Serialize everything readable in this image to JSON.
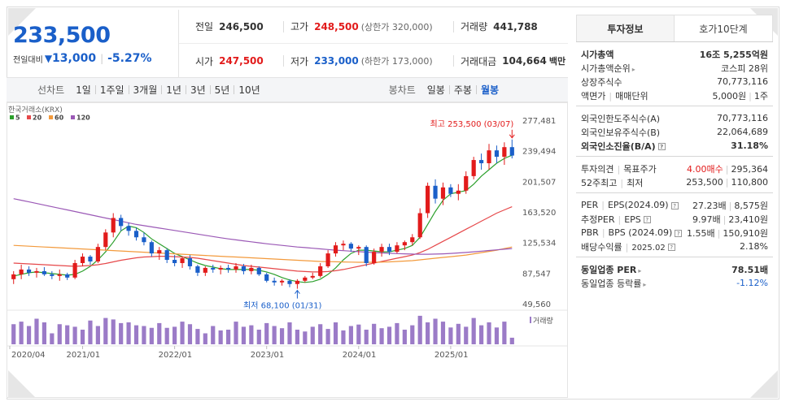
{
  "price": {
    "current": "233,500",
    "change_label": "전일대비",
    "change_arrow": "▼",
    "change_amount": "13,000",
    "change_pct": "-5.27%"
  },
  "stats": {
    "prev_close_label": "전일",
    "prev_close": "246,500",
    "high_label": "고가",
    "high": "248,500",
    "upper_limit": "(상한가 320,000)",
    "volume_label": "거래량",
    "volume": "441,788",
    "open_label": "시가",
    "open": "247,500",
    "low_label": "저가",
    "low": "233,000",
    "lower_limit": "(하한가 173,000)",
    "turnover_label": "거래대금",
    "turnover": "104,664",
    "turnover_unit": "백만"
  },
  "tabs": {
    "line_label": "선차트",
    "line_items": [
      "1일",
      "1주일",
      "3개월",
      "1년",
      "3년",
      "5년",
      "10년"
    ],
    "candle_label": "봉차트",
    "candle_items": [
      "일봉",
      "주봉",
      "월봉"
    ],
    "active_candle": "월봉"
  },
  "chart_data": {
    "type": "candlestick",
    "source_label": "한국거래소(KRX)",
    "legend": [
      {
        "name": "5",
        "color": "#2ca02c"
      },
      {
        "name": "20",
        "color": "#e6484a"
      },
      {
        "name": "60",
        "color": "#f39a3c"
      },
      {
        "name": "120",
        "color": "#9b59b6"
      }
    ],
    "y_ticks": [
      "277,481",
      "239,494",
      "201,507",
      "163,520",
      "125,534",
      "87,547",
      "49,560"
    ],
    "y_range": [
      49560,
      277481
    ],
    "x_ticks": [
      "2020/04",
      "2021/01",
      "2022/01",
      "2023/01",
      "2024/01",
      "2025/01"
    ],
    "max_annotation": "최고 253,500 (03/07)",
    "min_annotation": "최저 68,100 (01/31)",
    "volume_label": "거래량",
    "up_color": "#e21b1b",
    "down_color": "#1a5fc9",
    "candles": [
      {
        "o": 80000,
        "h": 90000,
        "l": 74000,
        "c": 86000
      },
      {
        "o": 86000,
        "h": 98000,
        "l": 80000,
        "c": 92000
      },
      {
        "o": 92000,
        "h": 96000,
        "l": 84000,
        "c": 88000
      },
      {
        "o": 88000,
        "h": 94000,
        "l": 82000,
        "c": 90000
      },
      {
        "o": 90000,
        "h": 95000,
        "l": 84000,
        "c": 86000
      },
      {
        "o": 86000,
        "h": 90000,
        "l": 80000,
        "c": 84000
      },
      {
        "o": 84000,
        "h": 92000,
        "l": 78000,
        "c": 86000
      },
      {
        "o": 86000,
        "h": 88000,
        "l": 79000,
        "c": 82000
      },
      {
        "o": 82000,
        "h": 104000,
        "l": 80000,
        "c": 100000
      },
      {
        "o": 100000,
        "h": 112000,
        "l": 96000,
        "c": 108000
      },
      {
        "o": 108000,
        "h": 110000,
        "l": 98000,
        "c": 102000
      },
      {
        "o": 102000,
        "h": 124000,
        "l": 100000,
        "c": 120000
      },
      {
        "o": 120000,
        "h": 142000,
        "l": 116000,
        "c": 138000
      },
      {
        "o": 138000,
        "h": 162000,
        "l": 132000,
        "c": 156000
      },
      {
        "o": 156000,
        "h": 160000,
        "l": 140000,
        "c": 146000
      },
      {
        "o": 146000,
        "h": 150000,
        "l": 134000,
        "c": 140000
      },
      {
        "o": 140000,
        "h": 144000,
        "l": 128000,
        "c": 132000
      },
      {
        "o": 132000,
        "h": 138000,
        "l": 122000,
        "c": 126000
      },
      {
        "o": 126000,
        "h": 128000,
        "l": 108000,
        "c": 112000
      },
      {
        "o": 112000,
        "h": 120000,
        "l": 104000,
        "c": 116000
      },
      {
        "o": 116000,
        "h": 118000,
        "l": 100000,
        "c": 104000
      },
      {
        "o": 104000,
        "h": 110000,
        "l": 96000,
        "c": 100000
      },
      {
        "o": 100000,
        "h": 108000,
        "l": 94000,
        "c": 106000
      },
      {
        "o": 106000,
        "h": 110000,
        "l": 92000,
        "c": 96000
      },
      {
        "o": 96000,
        "h": 98000,
        "l": 84000,
        "c": 88000
      },
      {
        "o": 88000,
        "h": 96000,
        "l": 84000,
        "c": 94000
      },
      {
        "o": 94000,
        "h": 98000,
        "l": 88000,
        "c": 92000
      },
      {
        "o": 92000,
        "h": 97000,
        "l": 86000,
        "c": 94000
      },
      {
        "o": 94000,
        "h": 98000,
        "l": 88000,
        "c": 92000
      },
      {
        "o": 92000,
        "h": 100000,
        "l": 88000,
        "c": 96000
      },
      {
        "o": 96000,
        "h": 99000,
        "l": 86000,
        "c": 90000
      },
      {
        "o": 90000,
        "h": 98000,
        "l": 86000,
        "c": 94000
      },
      {
        "o": 94000,
        "h": 96000,
        "l": 84000,
        "c": 86000
      },
      {
        "o": 86000,
        "h": 88000,
        "l": 76000,
        "c": 78000
      },
      {
        "o": 78000,
        "h": 82000,
        "l": 72000,
        "c": 76000
      },
      {
        "o": 76000,
        "h": 80000,
        "l": 72000,
        "c": 78000
      },
      {
        "o": 78000,
        "h": 80000,
        "l": 70000,
        "c": 74000
      },
      {
        "o": 74000,
        "h": 80000,
        "l": 68100,
        "c": 78000
      },
      {
        "o": 78000,
        "h": 84000,
        "l": 76000,
        "c": 82000
      },
      {
        "o": 82000,
        "h": 88000,
        "l": 80000,
        "c": 84000
      },
      {
        "o": 84000,
        "h": 100000,
        "l": 82000,
        "c": 96000
      },
      {
        "o": 96000,
        "h": 116000,
        "l": 94000,
        "c": 112000
      },
      {
        "o": 112000,
        "h": 126000,
        "l": 108000,
        "c": 122000
      },
      {
        "o": 122000,
        "h": 128000,
        "l": 116000,
        "c": 124000
      },
      {
        "o": 124000,
        "h": 126000,
        "l": 114000,
        "c": 118000
      },
      {
        "o": 118000,
        "h": 122000,
        "l": 110000,
        "c": 120000
      },
      {
        "o": 120000,
        "h": 122000,
        "l": 96000,
        "c": 100000
      },
      {
        "o": 100000,
        "h": 118000,
        "l": 98000,
        "c": 114000
      },
      {
        "o": 114000,
        "h": 124000,
        "l": 108000,
        "c": 120000
      },
      {
        "o": 120000,
        "h": 124000,
        "l": 110000,
        "c": 114000
      },
      {
        "o": 114000,
        "h": 126000,
        "l": 112000,
        "c": 122000
      },
      {
        "o": 122000,
        "h": 128000,
        "l": 116000,
        "c": 126000
      },
      {
        "o": 126000,
        "h": 136000,
        "l": 122000,
        "c": 132000
      },
      {
        "o": 132000,
        "h": 168000,
        "l": 130000,
        "c": 162000
      },
      {
        "o": 162000,
        "h": 200000,
        "l": 156000,
        "c": 196000
      },
      {
        "o": 196000,
        "h": 204000,
        "l": 174000,
        "c": 180000
      },
      {
        "o": 180000,
        "h": 200000,
        "l": 172000,
        "c": 194000
      },
      {
        "o": 194000,
        "h": 198000,
        "l": 182000,
        "c": 186000
      },
      {
        "o": 186000,
        "h": 198000,
        "l": 178000,
        "c": 190000
      },
      {
        "o": 190000,
        "h": 214000,
        "l": 186000,
        "c": 208000
      },
      {
        "o": 208000,
        "h": 232000,
        "l": 204000,
        "c": 228000
      },
      {
        "o": 228000,
        "h": 236000,
        "l": 216000,
        "c": 224000
      },
      {
        "o": 224000,
        "h": 248000,
        "l": 216000,
        "c": 240000
      },
      {
        "o": 240000,
        "h": 246000,
        "l": 224000,
        "c": 232000
      },
      {
        "o": 232000,
        "h": 250000,
        "l": 222000,
        "c": 244000
      },
      {
        "o": 244000,
        "h": 253500,
        "l": 230000,
        "c": 233500
      }
    ],
    "ma": {
      "5": [
        84000,
        86000,
        88000,
        89000,
        88000,
        87000,
        86000,
        85000,
        86000,
        90000,
        96000,
        104000,
        114000,
        126000,
        140000,
        146000,
        144000,
        138000,
        130000,
        124000,
        118000,
        112000,
        108000,
        104000,
        100000,
        97000,
        95000,
        93000,
        92000,
        92000,
        92000,
        92000,
        91000,
        89000,
        86000,
        82000,
        79000,
        77000,
        76000,
        77000,
        80000,
        86000,
        94000,
        104000,
        112000,
        116000,
        116000,
        115000,
        114000,
        114000,
        116000,
        118000,
        122000,
        132000,
        148000,
        164000,
        178000,
        186000,
        188000,
        190000,
        198000,
        208000,
        216000,
        224000,
        230000,
        234000
      ],
      "20": [
        100000,
        99500,
        99000,
        98500,
        98000,
        97500,
        97000,
        96500,
        96000,
        96500,
        97000,
        98000,
        99500,
        101500,
        103500,
        105000,
        106500,
        107500,
        108000,
        108500,
        108500,
        108000,
        107500,
        107000,
        106000,
        104500,
        103000,
        101500,
        100000,
        98500,
        97000,
        96000,
        95000,
        94000,
        93000,
        92000,
        91000,
        90000,
        89500,
        89000,
        89000,
        89500,
        90500,
        92000,
        94000,
        96000,
        98000,
        100000,
        102000,
        104000,
        106000,
        108000,
        110000,
        113000,
        117000,
        122000,
        127000,
        132000,
        137000,
        142000,
        147000,
        152000,
        157000,
        162000,
        166000,
        170000
      ],
      "60": [
        122000,
        121500,
        121000,
        120500,
        120000,
        119500,
        119000,
        118500,
        118000,
        117500,
        117000,
        116500,
        116000,
        115500,
        115000,
        114500,
        114000,
        113500,
        113000,
        112500,
        112000,
        111500,
        111000,
        110500,
        110000,
        109500,
        109000,
        108500,
        108000,
        107500,
        107000,
        106500,
        106000,
        105500,
        105000,
        104500,
        104000,
        103500,
        103000,
        102500,
        102000,
        101800,
        101600,
        101400,
        101200,
        101000,
        101000,
        101000,
        101200,
        101500,
        102000,
        102500,
        103000,
        104000,
        105000,
        106000,
        107000,
        108000,
        109000,
        110000,
        111500,
        113000,
        114500,
        116000,
        118000,
        120000
      ],
      "120": [
        180000,
        178000,
        176000,
        174000,
        172000,
        170000,
        168000,
        166000,
        164000,
        162000,
        160000,
        158000,
        156000,
        154000,
        152000,
        150000,
        148000,
        146500,
        145000,
        143500,
        142000,
        140500,
        139000,
        137500,
        136000,
        134500,
        133000,
        131500,
        130000,
        128800,
        127600,
        126400,
        125200,
        124000,
        123000,
        122000,
        121000,
        120000,
        119200,
        118400,
        117600,
        116800,
        116000,
        115400,
        114800,
        114200,
        113600,
        113000,
        112600,
        112200,
        111800,
        111500,
        111200,
        111000,
        111000,
        111200,
        111500,
        112000,
        112600,
        113200,
        114000,
        114800,
        115600,
        116400,
        117200,
        118000
      ]
    },
    "volumes": [
      55,
      62,
      50,
      70,
      60,
      30,
      55,
      52,
      48,
      40,
      65,
      50,
      72,
      68,
      58,
      60,
      52,
      50,
      45,
      58,
      45,
      48,
      62,
      55,
      42,
      30,
      50,
      38,
      40,
      62,
      48,
      52,
      40,
      58,
      50,
      44,
      60,
      40,
      35,
      48,
      55,
      42,
      60,
      38,
      50,
      54,
      40,
      56,
      44,
      48,
      58,
      40,
      52,
      78,
      60,
      70,
      62,
      46,
      56,
      48,
      72,
      52,
      60,
      46,
      62,
      18
    ],
    "volume_max": 80
  },
  "info": {
    "tab_active": "투자정보",
    "tab_other": "호가10단계",
    "market_cap_label": "시가총액",
    "market_cap": "16조 5,255억원",
    "market_rank_label": "시가총액순위",
    "market_rank": "코스피 28위",
    "shares_label": "상장주식수",
    "shares": "70,773,116",
    "par_label": "액면가",
    "unit_label": "매매단위",
    "par": "5,000원",
    "unit": "1주",
    "foreign_limit_label": "외국인한도주식수(A)",
    "foreign_limit": "70,773,116",
    "foreign_hold_label": "외국인보유주식수(B)",
    "foreign_hold": "22,064,689",
    "foreign_ratio_label": "외국인소진율(B/A)",
    "foreign_ratio": "31.18%",
    "opinion_label": "투자의견",
    "target_label": "목표주가",
    "opinion": "4.00매수",
    "target": "295,364",
    "wk52_high_label": "52주최고",
    "wk52_low_label": "최저",
    "wk52_high": "253,500",
    "wk52_low": "110,800",
    "per_label": "PER",
    "eps_label": "EPS(2024.09)",
    "per": "27.23배",
    "eps": "8,575원",
    "est_per_label": "추정PER",
    "est_eps_label": "EPS",
    "est_per": "9.97배",
    "est_eps": "23,410원",
    "pbr_label": "PBR",
    "bps_label": "BPS (2024.09)",
    "pbr": "1.55배",
    "bps": "150,910원",
    "div_label": "배당수익률",
    "div_date": "2025.02",
    "div": "2.18%",
    "sector_per_label": "동일업종 PER",
    "sector_per": "78.51배",
    "sector_chg_label": "동일업종 등락률",
    "sector_chg": "-1.12%"
  }
}
